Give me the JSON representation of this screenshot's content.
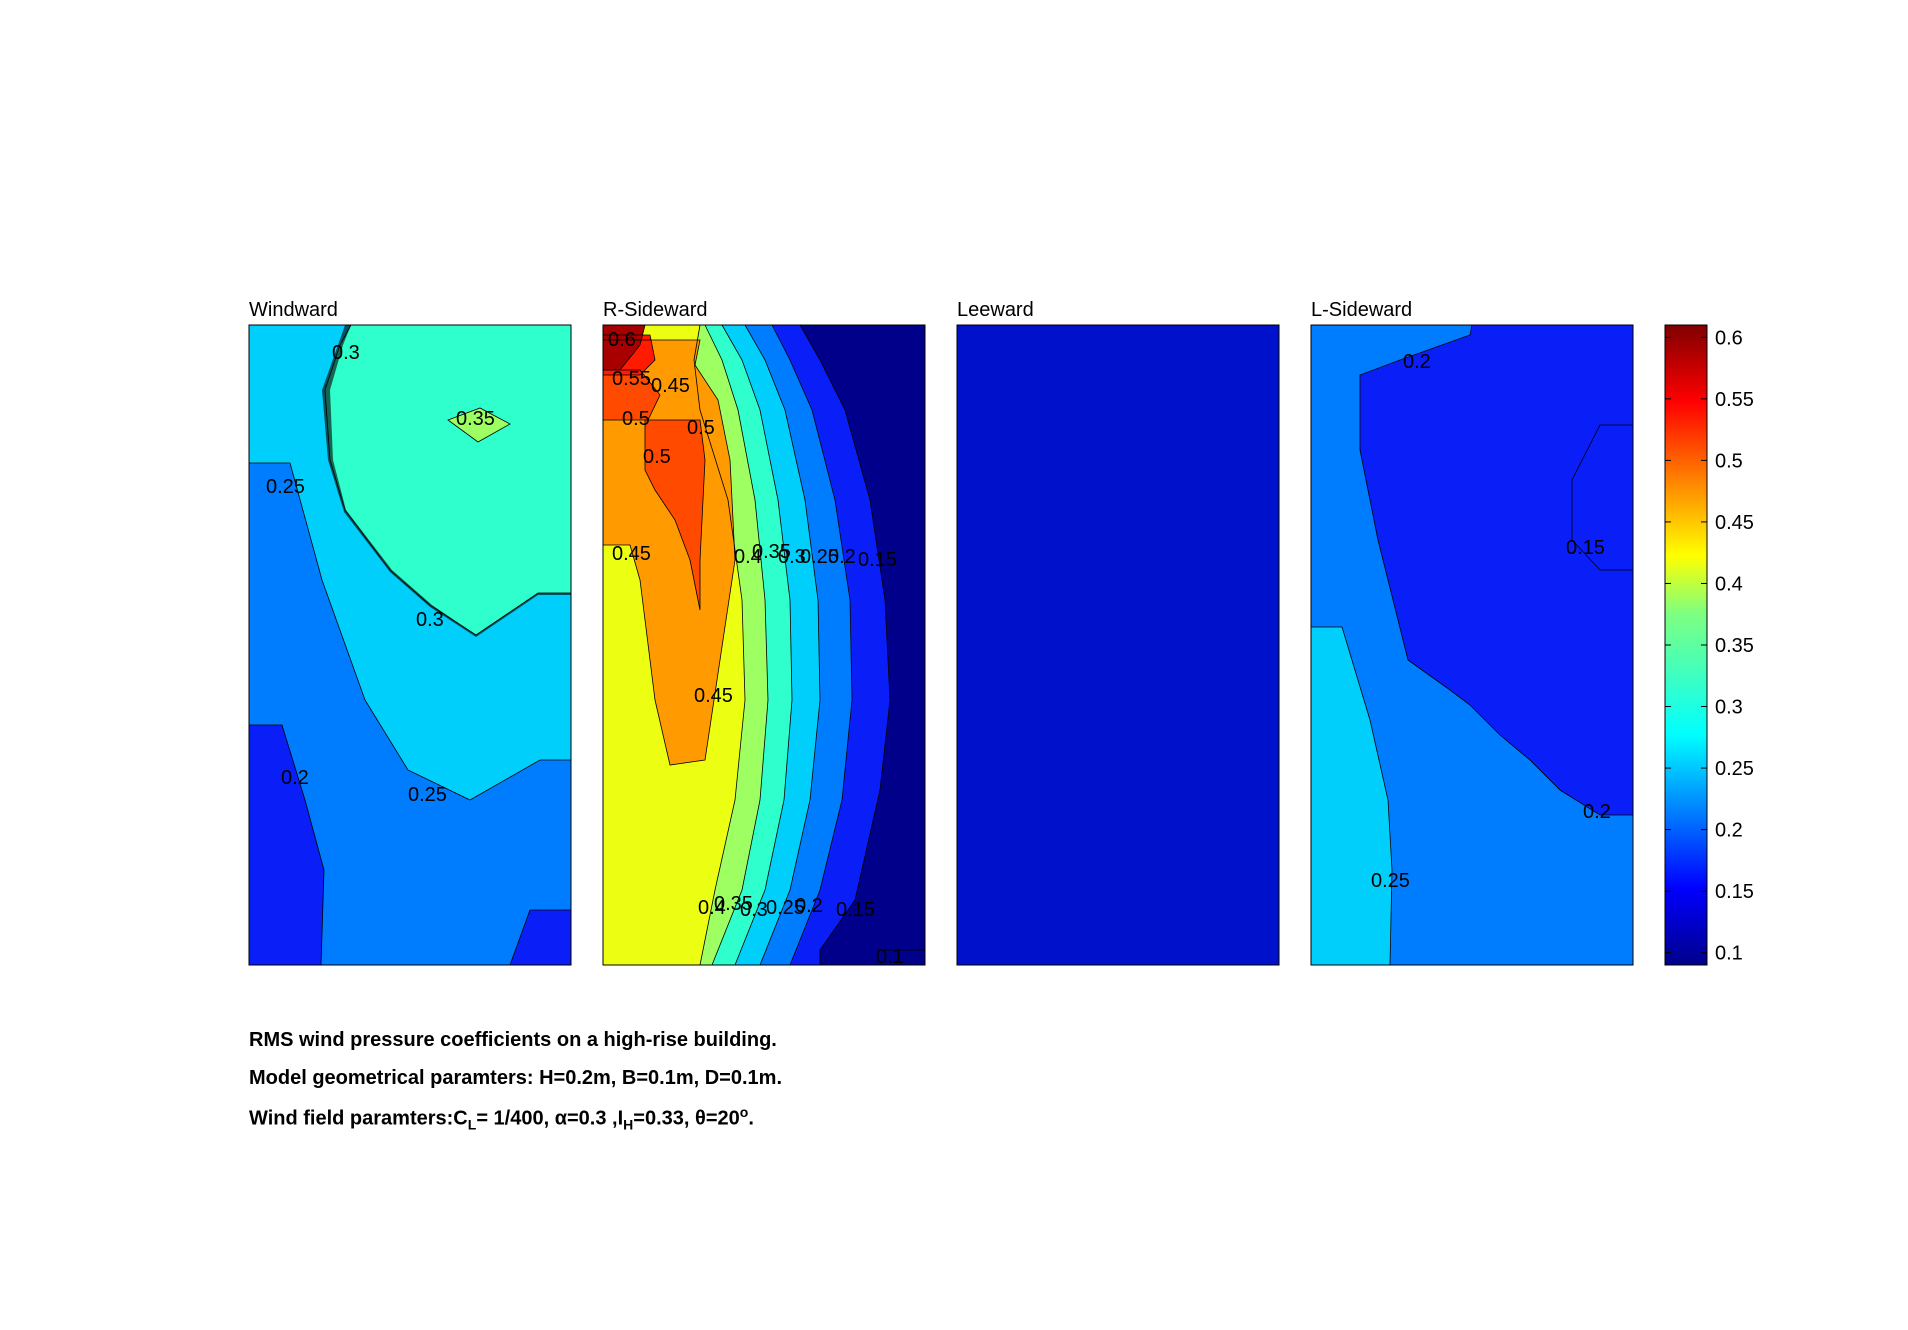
{
  "chart_data": {
    "type": "heatmap",
    "description_kind": "filled contour maps",
    "panels": [
      {
        "title": "Windward",
        "contour_labels": [
          "0.3",
          "0.35",
          "0.25",
          "0.3",
          "0.2",
          "0.25"
        ],
        "levels": [
          {
            "value": 0.3,
            "color": "#00cffb"
          },
          {
            "value": 0.35,
            "color": "#2effcd"
          },
          {
            "value": 0.2,
            "color": "#007dff"
          },
          {
            "value": 0.15,
            "color": "#0a1ef8"
          }
        ]
      },
      {
        "title": "R-Sideward",
        "contour_labels": [
          "0.6",
          "0.55",
          "0.45",
          "0.5",
          "0.5",
          "0.5",
          "0.45",
          "0.4",
          "0.35",
          "0.3",
          "0.25",
          "0.2",
          "0.15",
          "0.45",
          "0.4",
          "0.35",
          "0.3",
          "0.25",
          "0.2",
          "0.15",
          "0.1"
        ],
        "levels": [
          {
            "value": 0.6,
            "color": "#a80000"
          },
          {
            "value": 0.55,
            "color": "#ff1a00"
          },
          {
            "value": 0.5,
            "color": "#ff4a00"
          },
          {
            "value": 0.45,
            "color": "#ff9a00"
          },
          {
            "value": 0.4,
            "color": "#ecff12"
          },
          {
            "value": 0.35,
            "color": "#9dff62"
          },
          {
            "value": 0.3,
            "color": "#2effcd"
          },
          {
            "value": 0.25,
            "color": "#00cffb"
          },
          {
            "value": 0.2,
            "color": "#007dff"
          },
          {
            "value": 0.15,
            "color": "#0a1ef8"
          },
          {
            "value": 0.1,
            "color": "#00008a"
          }
        ]
      },
      {
        "title": "Leeward",
        "contour_labels": [],
        "levels": [
          {
            "value": 0.1,
            "color": "#0011cc"
          }
        ]
      },
      {
        "title": "L-Sideward",
        "contour_labels": [
          "0.2",
          "0.15",
          "0.2",
          "0.25"
        ],
        "levels": [
          {
            "value": 0.2,
            "color": "#007dff"
          },
          {
            "value": 0.15,
            "color": "#0a1ef8"
          },
          {
            "value": 0.25,
            "color": "#00cffb"
          }
        ]
      }
    ],
    "colorbar": {
      "ticks": [
        "0.6",
        "0.55",
        "0.5",
        "0.45",
        "0.4",
        "0.35",
        "0.3",
        "0.25",
        "0.2",
        "0.15",
        "0.1"
      ],
      "range": [
        0.09,
        0.61
      ],
      "colormap": "jet"
    }
  },
  "caption": {
    "line1": "RMS wind pressure coefficients on a high-rise building.",
    "line2": "Model geometrical paramters: H=0.2m, B=0.1m, D=0.1m.",
    "line3_a": "Wind field paramters:C",
    "line3_sub1": "L",
    "line3_b": "= 1/400, α=0.3 ,I",
    "line3_sub2": "H",
    "line3_c": "=0.33, θ=20",
    "line3_sup": "o",
    "line3_d": "."
  }
}
